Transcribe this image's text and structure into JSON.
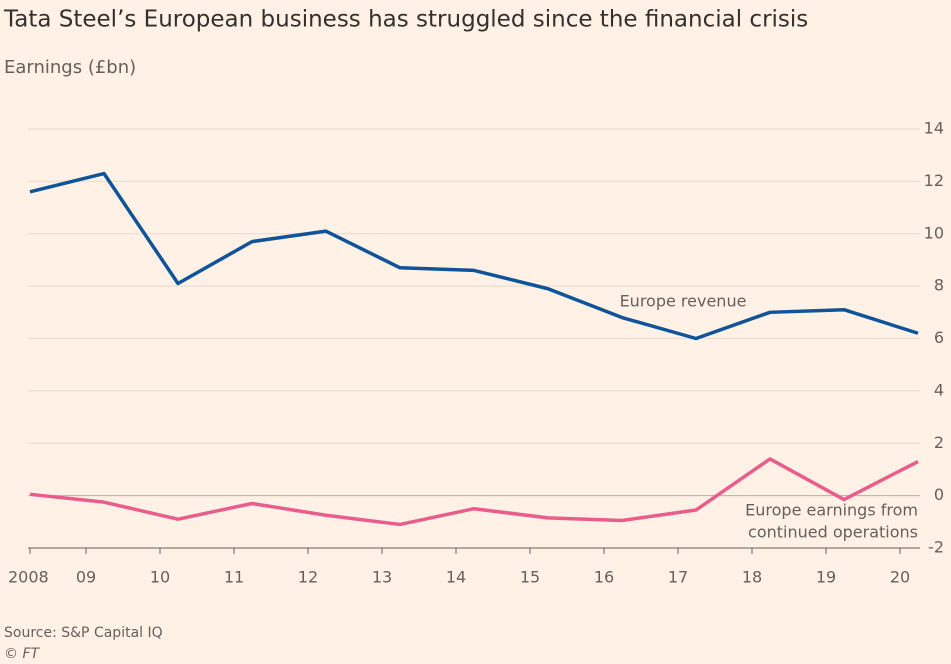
{
  "chart_data": {
    "type": "line",
    "title": "Tata Steel’s European business has struggled since the financial crisis",
    "subtitle": "Earnings (£bn)",
    "categories": [
      "2008",
      "09",
      "10",
      "11",
      "12",
      "13",
      "14",
      "15",
      "16",
      "17",
      "18",
      "19",
      "20"
    ],
    "series": [
      {
        "name": "Europe revenue",
        "color": "#0f5499",
        "values": [
          11.6,
          12.3,
          8.1,
          9.7,
          10.1,
          8.7,
          8.6,
          7.9,
          6.8,
          6.0,
          7.0,
          7.1,
          6.2
        ]
      },
      {
        "name": "Europe earnings from continued operations",
        "name_lines": [
          "Europe earnings from",
          "continued operations"
        ],
        "color": "#e95d8c",
        "values": [
          0.05,
          -0.25,
          -0.9,
          -0.3,
          -0.75,
          -1.1,
          -0.5,
          -0.85,
          -0.95,
          -0.55,
          1.4,
          -0.15,
          1.3
        ]
      }
    ],
    "ylim": [
      -2,
      14
    ],
    "yticks": [
      -2,
      0,
      2,
      4,
      6,
      8,
      10,
      12,
      14
    ],
    "grid": true,
    "source": "Source: S&P Capital IQ",
    "credit": "© FT"
  }
}
